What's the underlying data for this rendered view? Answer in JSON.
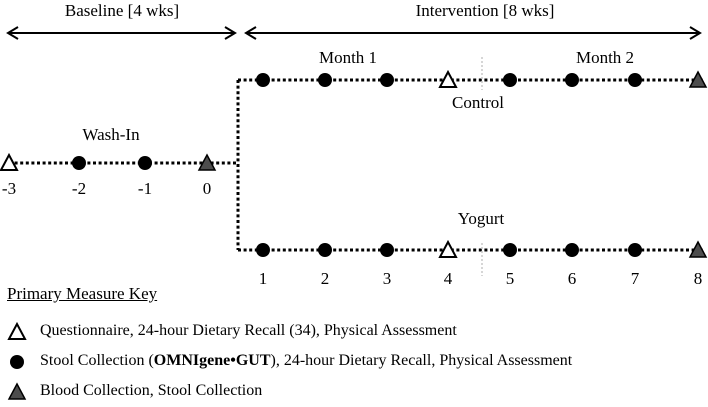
{
  "figure": {
    "baseline_label": "Baseline [4 wks]",
    "intervention_label": "Intervention [8 wks]",
    "month1_label": "Month 1",
    "month2_label": "Month 2"
  },
  "timelines": {
    "washin": {
      "label": "Wash-In",
      "week_labels": [
        "-3",
        "-2",
        "-1",
        "0"
      ],
      "markers": [
        "open_triangle",
        "circle",
        "circle",
        "gray_triangle"
      ]
    },
    "control": {
      "label": "Control",
      "markers": [
        "circle",
        "circle",
        "circle",
        "open_triangle",
        "circle",
        "circle",
        "circle",
        "gray_triangle"
      ]
    },
    "yogurt": {
      "label": "Yogurt",
      "week_labels": [
        "1",
        "2",
        "3",
        "4",
        "5",
        "6",
        "7",
        "8"
      ],
      "markers": [
        "circle",
        "circle",
        "circle",
        "open_triangle",
        "circle",
        "circle",
        "circle",
        "gray_triangle"
      ]
    }
  },
  "key": {
    "title": "Primary Measure Key",
    "entries": [
      {
        "symbol": "open_triangle",
        "segments": [
          {
            "text": "Questionnaire, 24-hour Dietary Recall (34), Physical Assessment",
            "bold": false
          }
        ]
      },
      {
        "symbol": "circle",
        "segments": [
          {
            "text": "Stool Collection (",
            "bold": false
          },
          {
            "text": "OMNIgene•GUT",
            "bold": true
          },
          {
            "text": "), 24-hour Dietary Recall, Physical Assessment",
            "bold": false
          }
        ]
      },
      {
        "symbol": "gray_triangle",
        "segments": [
          {
            "text": "Blood Collection, Stool Collection",
            "bold": false
          }
        ]
      }
    ]
  },
  "colors": {
    "ink": "#000000",
    "gray_fill": "#4d4d4d",
    "divider": "#c8c8c8",
    "background": "#ffffff"
  }
}
